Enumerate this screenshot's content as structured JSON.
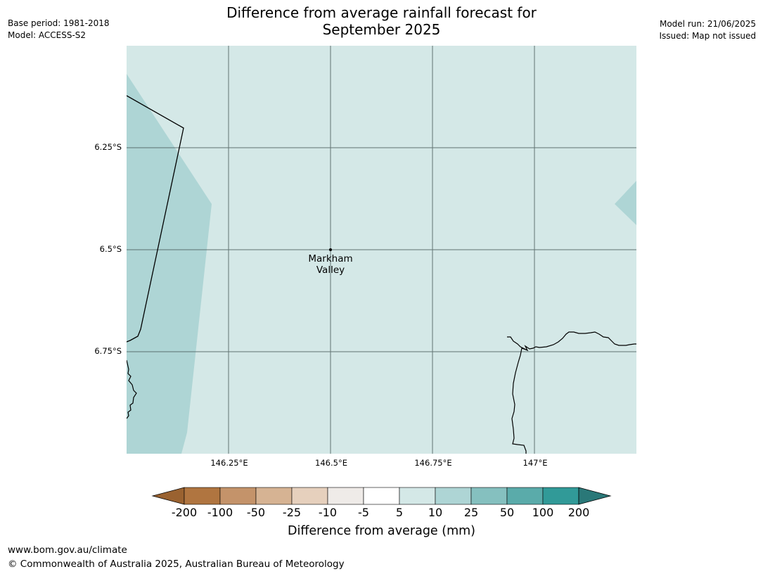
{
  "header": {
    "title_line1": "Difference from average rainfall forecast for",
    "title_line2": "September 2025",
    "base_period": "Base period: 1981-2018",
    "model": "Model: ACCESS-S2",
    "model_run": "Model run: 21/06/2025",
    "issued": "Issued: Map not issued"
  },
  "map": {
    "latitude_labels": [
      "6.25°S",
      "6.5°S",
      "6.75°S"
    ],
    "longitude_labels": [
      "146.25°E",
      "146.5°E",
      "146.75°E",
      "147°E"
    ],
    "place": {
      "name_line1": "Markham",
      "name_line2": "Valley",
      "lat": "6.5°S",
      "lon": "146.5°E"
    },
    "colors": {
      "background": "#d4e8e7",
      "region_10_25": "#aed5d5",
      "gridline": "#4d5e5e",
      "coastline": "#000000"
    }
  },
  "colorbar": {
    "title": "Difference from average (mm)",
    "labels": [
      "-200",
      "-100",
      "-50",
      "-25",
      "-10",
      "-5",
      "5",
      "10",
      "25",
      "50",
      "100",
      "200"
    ],
    "colors": [
      "#9a6230",
      "#b07540",
      "#c4936a",
      "#d6b393",
      "#e6d0bd",
      "#efebe8",
      "#ffffff",
      "#d4e8e7",
      "#aed5d5",
      "#85c0bf",
      "#5aabaa",
      "#319a98",
      "#2a7878"
    ]
  },
  "footer": {
    "url": "www.bom.gov.au/climate",
    "copyright": "© Commonwealth of Australia 2025, Australian Bureau of Meteorology"
  }
}
